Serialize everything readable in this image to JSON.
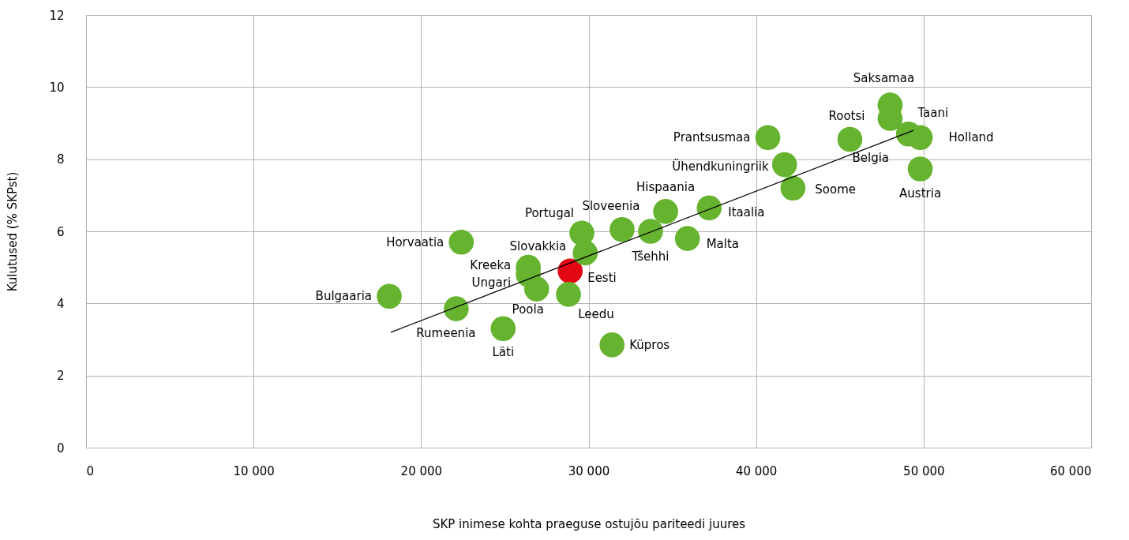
{
  "chart_data": {
    "type": "scatter",
    "xlabel": "SKP inimese kohta praeguse ostujõu pariteedi juures",
    "ylabel": "Kulutused (% SKPst)",
    "xlim": [
      0,
      60000
    ],
    "ylim": [
      0,
      12
    ],
    "xticks": [
      0,
      {
        "value": 10000,
        "label": "10 000"
      },
      {
        "value": 20000,
        "label": "20 000"
      },
      {
        "value": 30000,
        "label": "30 000"
      },
      {
        "value": 40000,
        "label": "40 000"
      },
      {
        "value": 50000,
        "label": "50 000"
      },
      {
        "value": 60000,
        "label": "60 000"
      }
    ],
    "yticks": [
      0,
      2,
      4,
      6,
      8,
      10,
      12
    ],
    "grid": true,
    "marker": "circle",
    "series": [
      {
        "x": [
          18100,
          22100,
          22400,
          24900,
          26400,
          26400,
          26900,
          28900,
          28800,
          29800,
          29600,
          32000,
          31400,
          33700,
          34600,
          35900,
          37200,
          40700,
          41700,
          42200,
          45600,
          48000,
          48000,
          49100,
          49800,
          49800
        ],
        "values": [
          4.2,
          3.85,
          5.7,
          3.3,
          5.0,
          4.8,
          4.4,
          4.9,
          4.25,
          5.4,
          5.95,
          6.05,
          2.85,
          6.0,
          6.55,
          5.8,
          6.65,
          8.6,
          7.85,
          7.2,
          8.55,
          9.5,
          9.13,
          8.7,
          8.6,
          7.73
        ],
        "colors": [
          "#65b32e",
          "#65b32e",
          "#65b32e",
          "#65b32e",
          "#65b32e",
          "#65b32e",
          "#65b32e",
          "#e30613",
          "#65b32e",
          "#65b32e",
          "#65b32e",
          "#65b32e",
          "#65b32e",
          "#65b32e",
          "#65b32e",
          "#65b32e",
          "#65b32e",
          "#65b32e",
          "#65b32e",
          "#65b32e",
          "#65b32e",
          "#65b32e",
          "#65b32e",
          "#65b32e",
          "#65b32e",
          "#65b32e"
        ]
      },
      {
        "type": "line",
        "color": "#000000",
        "marker": "none",
        "x": [
          18200,
          49400
        ],
        "values": [
          3.2,
          8.8
        ]
      }
    ],
    "annotations": [
      {
        "text": "Bulgaaria",
        "x": 18100,
        "y": 4.2
      },
      {
        "text": "Rumeenia",
        "x": 22100,
        "y": 3.85
      },
      {
        "text": "Horvaatia",
        "x": 22400,
        "y": 5.7
      },
      {
        "text": "Läti",
        "x": 24900,
        "y": 3.3
      },
      {
        "text": "Kreeka",
        "x": 26400,
        "y": 5.0
      },
      {
        "text": "Ungari",
        "x": 26400,
        "y": 4.8
      },
      {
        "text": "Poola",
        "x": 26900,
        "y": 4.4
      },
      {
        "text": "Eesti",
        "x": 28900,
        "y": 4.9
      },
      {
        "text": "Leedu",
        "x": 28800,
        "y": 4.25
      },
      {
        "text": "Slovakkia",
        "x": 29800,
        "y": 5.4
      },
      {
        "text": "Portugal",
        "x": 29600,
        "y": 5.95
      },
      {
        "text": "Sloveenia",
        "x": 32000,
        "y": 6.05
      },
      {
        "text": "Küpros",
        "x": 31400,
        "y": 2.85
      },
      {
        "text": "Tšehhi",
        "x": 33700,
        "y": 6.0
      },
      {
        "text": "Hispaania",
        "x": 34600,
        "y": 6.55
      },
      {
        "text": "Malta",
        "x": 35900,
        "y": 5.8
      },
      {
        "text": "Itaalia",
        "x": 37200,
        "y": 6.65
      },
      {
        "text": "Prantsusmaa",
        "x": 40700,
        "y": 8.6
      },
      {
        "text": "Ühendkuningriik",
        "x": 41700,
        "y": 7.85
      },
      {
        "text": "Soome",
        "x": 42200,
        "y": 7.2
      },
      {
        "text": "Rootsi",
        "x": 45600,
        "y": 8.55
      },
      {
        "text": "Saksamaa",
        "x": 48000,
        "y": 9.5
      },
      {
        "text": "Taani",
        "x": 48000,
        "y": 9.13
      },
      {
        "text": "Belgia",
        "x": 49100,
        "y": 8.7
      },
      {
        "text": "Holland",
        "x": 49800,
        "y": 8.6
      },
      {
        "text": "Austria",
        "x": 49800,
        "y": 7.73
      }
    ]
  }
}
